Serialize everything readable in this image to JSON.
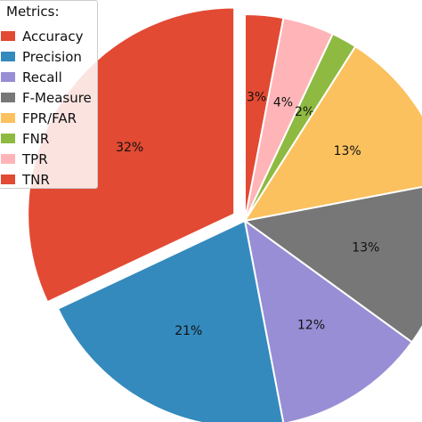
{
  "chart_data": {
    "type": "pie",
    "legend_title": "Metrics:",
    "legend_position": "top-left",
    "start_angle_deg": 90,
    "direction": "clockwise",
    "categories": [
      "TNR",
      "TPR",
      "FNR",
      "FPR/FAR",
      "F-Measure",
      "Recall",
      "Precision",
      "Accuracy"
    ],
    "values": [
      3,
      4,
      2,
      13,
      13,
      12,
      21,
      32
    ],
    "value_labels": [
      "3%",
      "4%",
      "2%",
      "13%",
      "13%",
      "12%",
      "21%",
      "32%"
    ],
    "colors": [
      "#e24a33",
      "#ffb5b8",
      "#8eba42",
      "#fbc15e",
      "#777777",
      "#988ed5",
      "#348abd",
      "#e24a33"
    ],
    "exploded": [
      "Accuracy"
    ],
    "legend_entries": [
      {
        "label": "Accuracy",
        "color": "#e24a33"
      },
      {
        "label": "Precision",
        "color": "#348abd"
      },
      {
        "label": "Recall",
        "color": "#988ed5"
      },
      {
        "label": "F-Measure",
        "color": "#777777"
      },
      {
        "label": "FPR/FAR",
        "color": "#fbc15e"
      },
      {
        "label": "FNR",
        "color": "#8eba42"
      },
      {
        "label": "TPR",
        "color": "#ffb5b8"
      },
      {
        "label": "TNR",
        "color": "#e24a33"
      }
    ]
  }
}
